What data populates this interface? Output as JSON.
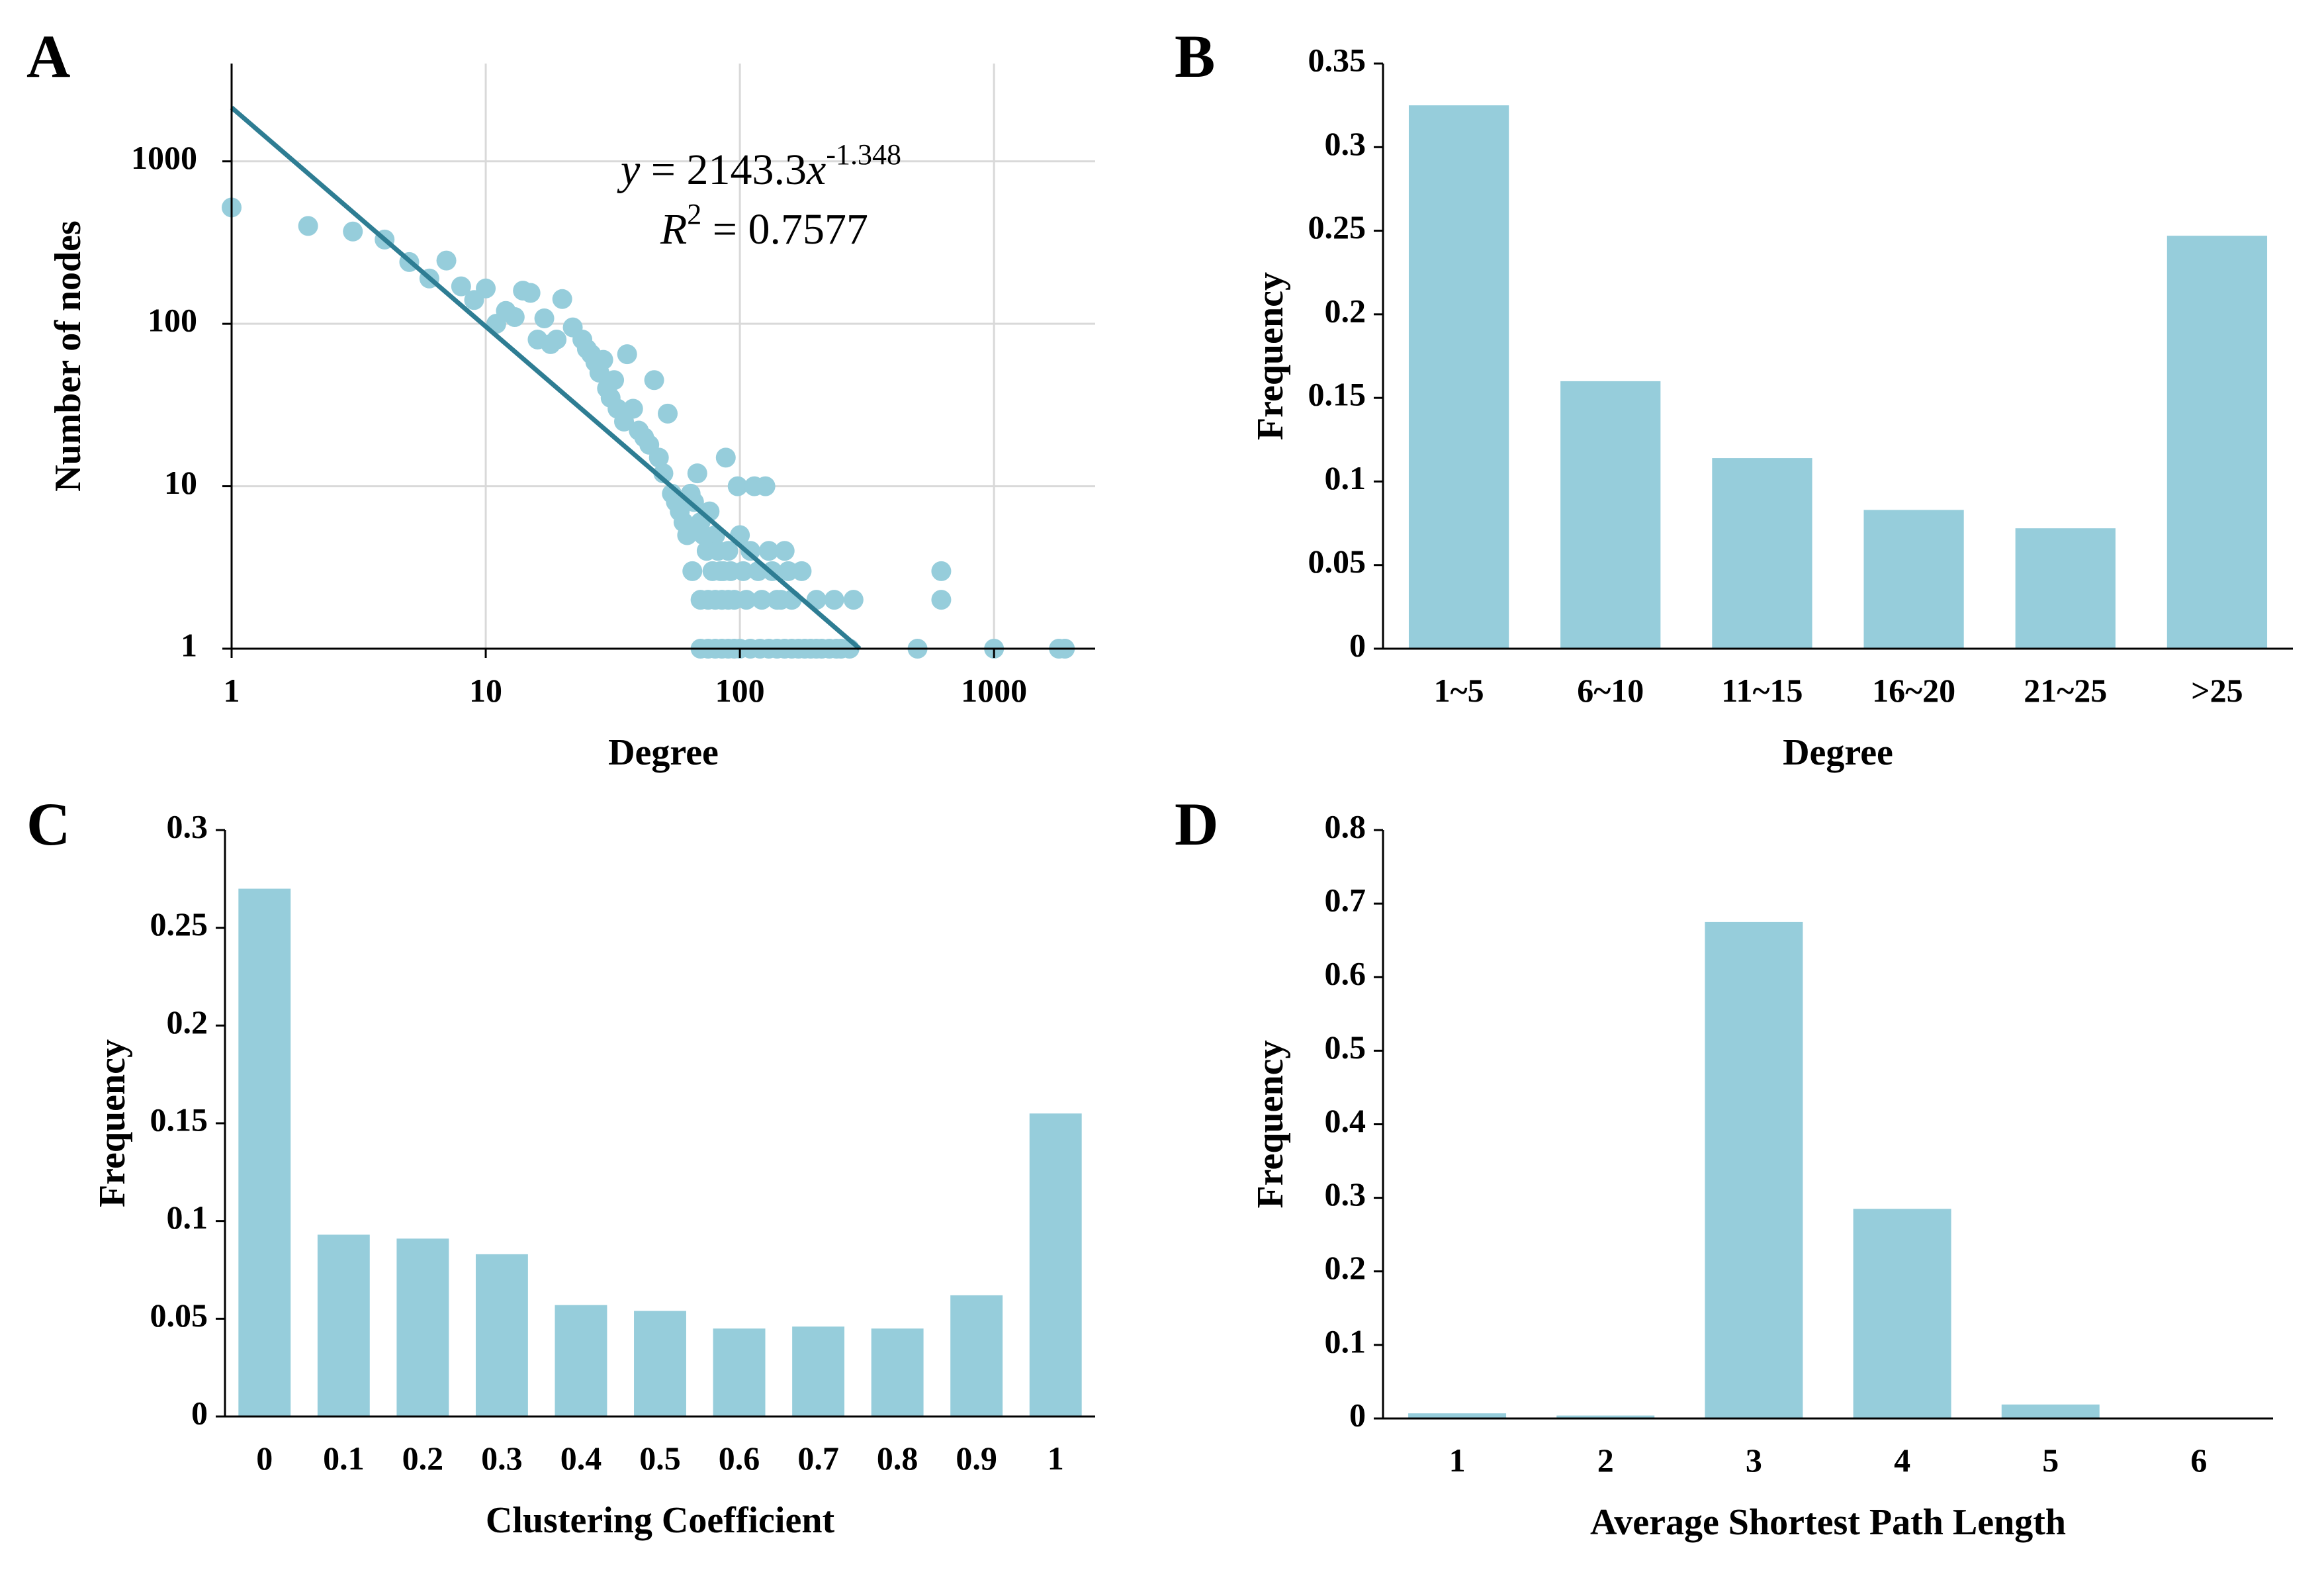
{
  "colors": {
    "bar": "#96cddb",
    "point": "#96cddb",
    "trendline": "#2e7d93",
    "axis": "#000000",
    "grid": "#d9d9d9"
  },
  "chart_data": [
    {
      "panel": "A",
      "type": "scatter",
      "xlabel": "Degree",
      "ylabel": "Number of nodes",
      "xscale": "log",
      "yscale": "log",
      "xlim": [
        1,
        2500
      ],
      "ylim": [
        1,
        4000
      ],
      "grid": true,
      "x_ticks": [
        "1",
        "10",
        "100",
        "1000"
      ],
      "y_ticks": [
        "1",
        "10",
        "100",
        "1000"
      ],
      "annotation": {
        "equation_prefix": "y",
        "equation_middle": " = 2143.3",
        "equation_var": "x",
        "equation_exponent": "-1.348",
        "r2_prefix": "R",
        "r2_exponent": "2",
        "r2_suffix": " = 0.7577"
      },
      "trendline": {
        "a": 2143.3,
        "b": -1.348
      },
      "points": [
        [
          1,
          520
        ],
        [
          2,
          400
        ],
        [
          3,
          370
        ],
        [
          4,
          330
        ],
        [
          5,
          240
        ],
        [
          6,
          190
        ],
        [
          7,
          245
        ],
        [
          8,
          170
        ],
        [
          9,
          140
        ],
        [
          10,
          165
        ],
        [
          11,
          100
        ],
        [
          12,
          120
        ],
        [
          13,
          110
        ],
        [
          14,
          160
        ],
        [
          15,
          155
        ],
        [
          16,
          80
        ],
        [
          17,
          108
        ],
        [
          18,
          75
        ],
        [
          19,
          80
        ],
        [
          20,
          142
        ],
        [
          22,
          95
        ],
        [
          24,
          80
        ],
        [
          25,
          70
        ],
        [
          26,
          65
        ],
        [
          27,
          58
        ],
        [
          28,
          50
        ],
        [
          29,
          60
        ],
        [
          30,
          40
        ],
        [
          31,
          35
        ],
        [
          32,
          45
        ],
        [
          33,
          30
        ],
        [
          35,
          25
        ],
        [
          36,
          65
        ],
        [
          38,
          30
        ],
        [
          40,
          22
        ],
        [
          42,
          20
        ],
        [
          44,
          18
        ],
        [
          46,
          45
        ],
        [
          48,
          15
        ],
        [
          50,
          12
        ],
        [
          52,
          28
        ],
        [
          54,
          9
        ],
        [
          56,
          8
        ],
        [
          58,
          7
        ],
        [
          60,
          6
        ],
        [
          62,
          5
        ],
        [
          64,
          9
        ],
        [
          66,
          8
        ],
        [
          68,
          12
        ],
        [
          70,
          6
        ],
        [
          72,
          5
        ],
        [
          74,
          4
        ],
        [
          76,
          7
        ],
        [
          78,
          3
        ],
        [
          80,
          5
        ],
        [
          82,
          4
        ],
        [
          84,
          3
        ],
        [
          86,
          3
        ],
        [
          88,
          15
        ],
        [
          90,
          4
        ],
        [
          92,
          3
        ],
        [
          95,
          2
        ],
        [
          98,
          10
        ],
        [
          100,
          5
        ],
        [
          103,
          3
        ],
        [
          106,
          2
        ],
        [
          110,
          4
        ],
        [
          114,
          10
        ],
        [
          118,
          3
        ],
        [
          122,
          2
        ],
        [
          126,
          10
        ],
        [
          130,
          4
        ],
        [
          134,
          3
        ],
        [
          140,
          2
        ],
        [
          145,
          2
        ],
        [
          150,
          4
        ],
        [
          155,
          3
        ],
        [
          160,
          2
        ],
        [
          175,
          3
        ],
        [
          200,
          2
        ],
        [
          235,
          2
        ],
        [
          280,
          2
        ],
        [
          620,
          3
        ],
        [
          620,
          2
        ],
        [
          65,
          3
        ],
        [
          70,
          2
        ],
        [
          75,
          2
        ],
        [
          80,
          2
        ],
        [
          85,
          2
        ],
        [
          90,
          2
        ],
        [
          70,
          1
        ],
        [
          75,
          1
        ],
        [
          80,
          1
        ],
        [
          85,
          1
        ],
        [
          90,
          1
        ],
        [
          95,
          1
        ],
        [
          100,
          1
        ],
        [
          110,
          1
        ],
        [
          120,
          1
        ],
        [
          130,
          1
        ],
        [
          140,
          1
        ],
        [
          150,
          1
        ],
        [
          160,
          1
        ],
        [
          170,
          1
        ],
        [
          180,
          1
        ],
        [
          190,
          1
        ],
        [
          200,
          1
        ],
        [
          210,
          1
        ],
        [
          225,
          1
        ],
        [
          240,
          1
        ],
        [
          250,
          1
        ],
        [
          270,
          1
        ],
        [
          500,
          1
        ],
        [
          1000,
          1
        ],
        [
          1800,
          1
        ],
        [
          1900,
          1
        ]
      ]
    },
    {
      "panel": "B",
      "type": "bar",
      "xlabel": "Degree",
      "ylabel": "Frequency",
      "categories": [
        "1~5",
        "6~10",
        "11~15",
        "16~20",
        "21~25",
        ">25"
      ],
      "values": [
        0.325,
        0.16,
        0.114,
        0.083,
        0.072,
        0.247
      ],
      "ylim": [
        0,
        0.35
      ],
      "y_ticks": [
        "0",
        "0.05",
        "0.1",
        "0.15",
        "0.2",
        "0.25",
        "0.3",
        "0.35"
      ]
    },
    {
      "panel": "C",
      "type": "bar",
      "xlabel": "Clustering Coefficient",
      "ylabel": "Frequency",
      "categories": [
        "0",
        "0.1",
        "0.2",
        "0.3",
        "0.4",
        "0.5",
        "0.6",
        "0.7",
        "0.8",
        "0.9",
        "1"
      ],
      "values": [
        0.27,
        0.093,
        0.091,
        0.083,
        0.057,
        0.054,
        0.045,
        0.046,
        0.045,
        0.062,
        0.155
      ],
      "ylim": [
        0,
        0.3
      ],
      "y_ticks": [
        "0",
        "0.05",
        "0.1",
        "0.15",
        "0.2",
        "0.25",
        "0.3"
      ]
    },
    {
      "panel": "D",
      "type": "bar",
      "xlabel": "Average Shortest Path Length",
      "ylabel": "Frequency",
      "categories": [
        "1",
        "2",
        "3",
        "4",
        "5",
        "6"
      ],
      "values": [
        0.007,
        0.004,
        0.675,
        0.285,
        0.019,
        0.0
      ],
      "ylim": [
        0,
        0.8
      ],
      "y_ticks": [
        "0",
        "0.1",
        "0.2",
        "0.3",
        "0.4",
        "0.5",
        "0.6",
        "0.7",
        "0.8"
      ]
    }
  ]
}
